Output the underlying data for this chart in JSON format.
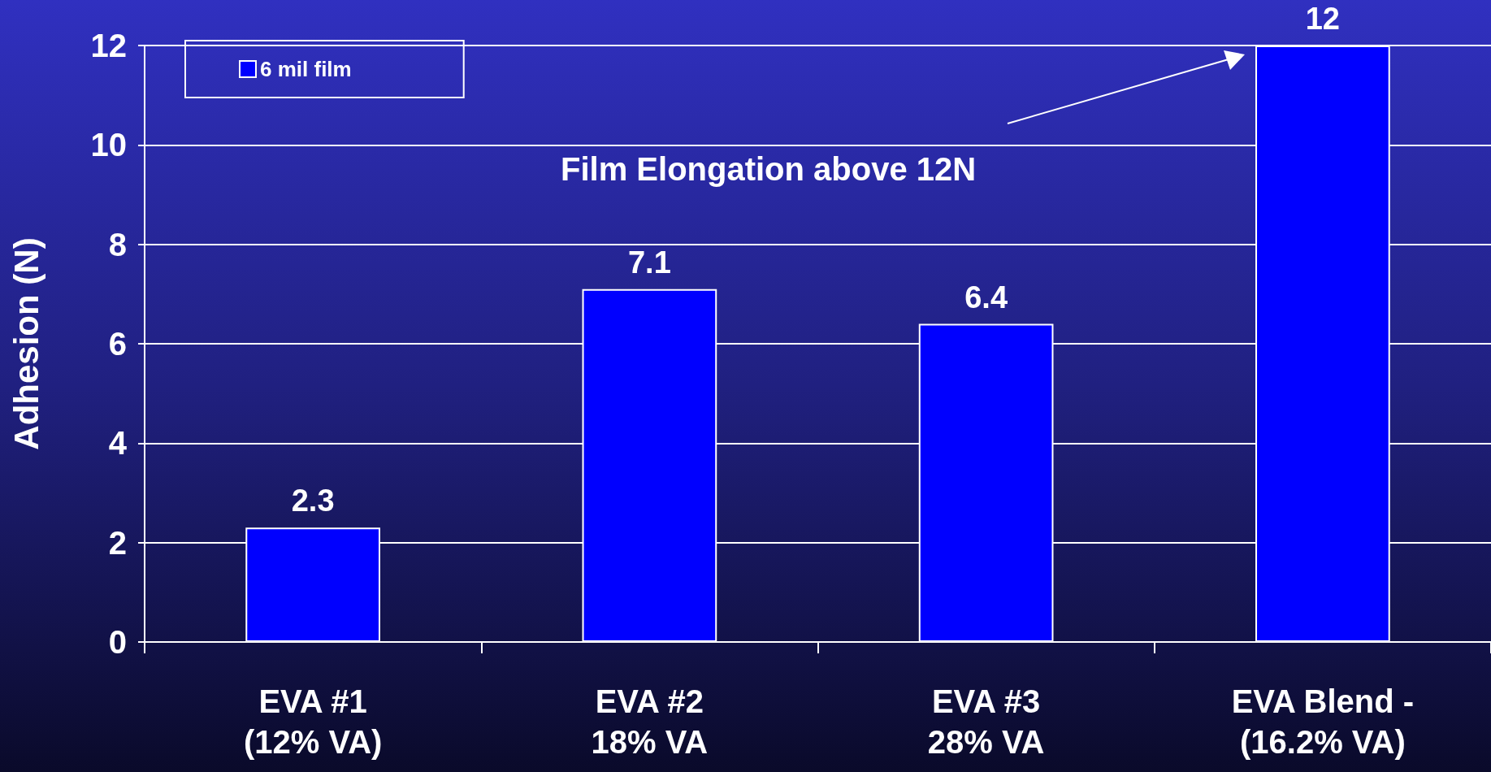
{
  "chart_data": {
    "type": "bar",
    "ylabel": "Adhesion (N)",
    "categories": [
      "EVA #1\n(12% VA)",
      "EVA #2\n18% VA",
      "EVA #3\n28% VA",
      "EVA Blend -\n(16.2% VA)"
    ],
    "series": [
      {
        "name": "6 mil film",
        "color": "#0000ff",
        "values": [
          2.3,
          7.1,
          6.4,
          12
        ]
      }
    ],
    "ylim": [
      0,
      12
    ],
    "yticks": [
      0,
      2,
      4,
      6,
      8,
      10,
      12
    ],
    "grid": "y",
    "legend": "top left",
    "data_labels": true,
    "annotations": [
      "Film Elongation above 12N"
    ]
  }
}
